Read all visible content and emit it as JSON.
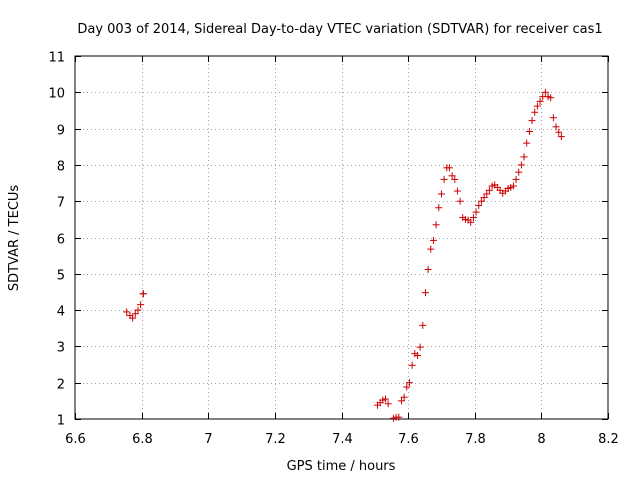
{
  "chart_data": {
    "type": "scatter",
    "title": "Day 003 of 2014, Sidereal Day-to-day VTEC variation (SDTVAR) for receiver cas1",
    "xlabel": "GPS time / hours",
    "ylabel": "SDTVAR / TECUs",
    "xlim": [
      6.6,
      8.2
    ],
    "ylim": [
      1,
      11
    ],
    "xticks": [
      6.6,
      6.8,
      7,
      7.2,
      7.4,
      7.6,
      7.8,
      8,
      8.2
    ],
    "xtick_labels": [
      "6.6",
      "6.8",
      "7",
      "7.2",
      "7.4",
      "7.6",
      "7.8",
      "8",
      "8.2"
    ],
    "yticks": [
      1,
      2,
      3,
      4,
      5,
      6,
      7,
      8,
      9,
      10,
      11
    ],
    "ytick_labels": [
      "1",
      "2",
      "3",
      "4",
      "5",
      "6",
      "7",
      "8",
      "9",
      "10",
      "11"
    ],
    "grid": true,
    "marker": "+",
    "color": "#cc0000",
    "series": [
      {
        "name": "SDTVAR",
        "points": [
          [
            6.755,
            3.95
          ],
          [
            6.765,
            3.85
          ],
          [
            6.773,
            3.78
          ],
          [
            6.781,
            3.9
          ],
          [
            6.789,
            4.0
          ],
          [
            6.797,
            4.15
          ],
          [
            6.805,
            4.45
          ],
          [
            6.805,
            4.45
          ],
          [
            7.508,
            1.38
          ],
          [
            7.516,
            1.45
          ],
          [
            7.524,
            1.52
          ],
          [
            7.532,
            1.55
          ],
          [
            7.54,
            1.42
          ],
          [
            7.556,
            1.02
          ],
          [
            7.564,
            1.05
          ],
          [
            7.572,
            1.05
          ],
          [
            7.58,
            1.5
          ],
          [
            7.588,
            1.6
          ],
          [
            7.596,
            1.88
          ],
          [
            7.604,
            2.0
          ],
          [
            7.612,
            2.48
          ],
          [
            7.62,
            2.8
          ],
          [
            7.628,
            2.75
          ],
          [
            7.636,
            2.98
          ],
          [
            7.644,
            3.58
          ],
          [
            7.652,
            4.48
          ],
          [
            7.66,
            5.12
          ],
          [
            7.668,
            5.68
          ],
          [
            7.676,
            5.92
          ],
          [
            7.684,
            6.35
          ],
          [
            7.692,
            6.82
          ],
          [
            7.7,
            7.2
          ],
          [
            7.708,
            7.6
          ],
          [
            7.716,
            7.92
          ],
          [
            7.724,
            7.92
          ],
          [
            7.732,
            7.7
          ],
          [
            7.74,
            7.6
          ],
          [
            7.748,
            7.28
          ],
          [
            7.756,
            7.0
          ],
          [
            7.764,
            6.55
          ],
          [
            7.772,
            6.5
          ],
          [
            7.78,
            6.48
          ],
          [
            7.788,
            6.42
          ],
          [
            7.796,
            6.55
          ],
          [
            7.804,
            6.7
          ],
          [
            7.812,
            6.88
          ],
          [
            7.82,
            7.0
          ],
          [
            7.828,
            7.1
          ],
          [
            7.836,
            7.2
          ],
          [
            7.844,
            7.3
          ],
          [
            7.852,
            7.42
          ],
          [
            7.86,
            7.45
          ],
          [
            7.868,
            7.38
          ],
          [
            7.876,
            7.3
          ],
          [
            7.884,
            7.22
          ],
          [
            7.892,
            7.28
          ],
          [
            7.9,
            7.35
          ],
          [
            7.908,
            7.38
          ],
          [
            7.916,
            7.42
          ],
          [
            7.924,
            7.6
          ],
          [
            7.932,
            7.8
          ],
          [
            7.94,
            8.0
          ],
          [
            7.948,
            8.22
          ],
          [
            7.956,
            8.6
          ],
          [
            7.964,
            8.92
          ],
          [
            7.972,
            9.22
          ],
          [
            7.98,
            9.45
          ],
          [
            7.988,
            9.62
          ],
          [
            7.996,
            9.75
          ],
          [
            8.004,
            9.88
          ],
          [
            8.012,
            10.0
          ],
          [
            8.02,
            9.88
          ],
          [
            8.028,
            9.85
          ],
          [
            8.036,
            9.3
          ],
          [
            8.044,
            9.05
          ],
          [
            8.052,
            8.9
          ],
          [
            8.06,
            8.78
          ]
        ]
      }
    ]
  }
}
